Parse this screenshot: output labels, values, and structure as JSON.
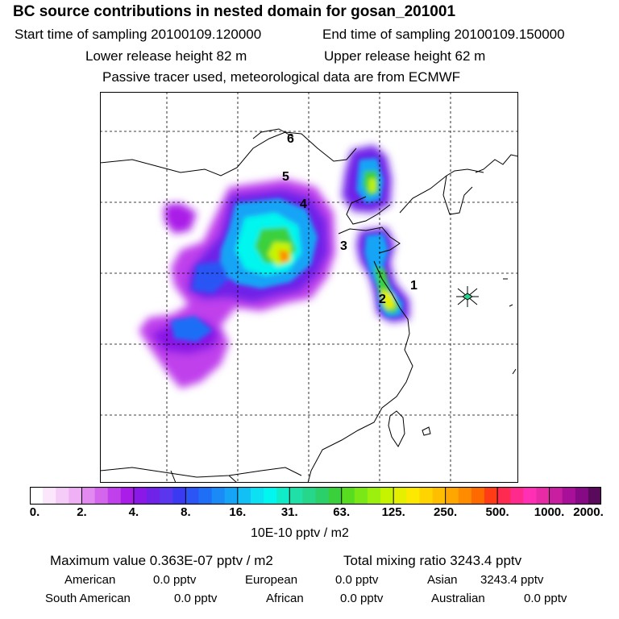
{
  "header": {
    "title": "BC  source contributions in nested domain for gosan_201001",
    "start_label": "Start time of sampling 20100109.120000",
    "end_label": "End time of sampling 20100109.150000",
    "lower_label": "Lower release height   82 m",
    "upper_label": "Upper release height   62 m",
    "note": "Passive tracer used, meteorological data are from ECMWF"
  },
  "chart_data": {
    "type": "heatmap",
    "title": "BC  source contributions in nested domain for gosan_201001",
    "colorbar": {
      "tick_labels": [
        "0.",
        "2.",
        "4.",
        "8.",
        "16.",
        "31.",
        "63.",
        "125.",
        "250.",
        "500.",
        "1000.",
        "2000."
      ],
      "unit": "10E-10 pptv / m2",
      "colors": [
        "#ffffff",
        "#fbe6fb",
        "#f5ccf7",
        "#efb0f5",
        "#e28af0",
        "#d466ee",
        "#c040ec",
        "#aa1de8",
        "#8a18e6",
        "#6f22e8",
        "#5a36ee",
        "#3a3af2",
        "#2b55f5",
        "#1f6ef6",
        "#1a8af6",
        "#16a4f6",
        "#12c0f6",
        "#0ee0f4",
        "#00f6ee",
        "#10ecc8",
        "#20e0a8",
        "#26d68a",
        "#2cd06a",
        "#3ad03c",
        "#58dc20",
        "#7ae816",
        "#9cf00e",
        "#c6f400",
        "#e4f000",
        "#fce800",
        "#ffd400",
        "#ffbf00",
        "#ffa600",
        "#ff8c00",
        "#ff6a00",
        "#ff3c16",
        "#ff2a50",
        "#ff2a8c",
        "#ff30b4",
        "#e82aa6",
        "#c81ea0",
        "#a8109a",
        "#860a86",
        "#5a0a5a"
      ]
    },
    "markers": [
      {
        "label": "1"
      },
      {
        "label": "2"
      },
      {
        "label": "3"
      },
      {
        "label": "4"
      },
      {
        "label": "5"
      },
      {
        "label": "6"
      }
    ],
    "stats": {
      "maximum": "Maximum value  0.363E-07 pptv / m2",
      "total": "Total mixing ratio     3243.4 pptv"
    },
    "contributions": {
      "american_label": "American",
      "american_value": "0.0 pptv",
      "european_label": "European",
      "european_value": "0.0 pptv",
      "asian_label": "Asian",
      "asian_value": "3243.4 pptv",
      "south_american_label": "South American",
      "south_american_value": "0.0 pptv",
      "african_label": "African",
      "african_value": "0.0 pptv",
      "australian_label": "Australian",
      "australian_value": "0.0 pptv"
    }
  }
}
